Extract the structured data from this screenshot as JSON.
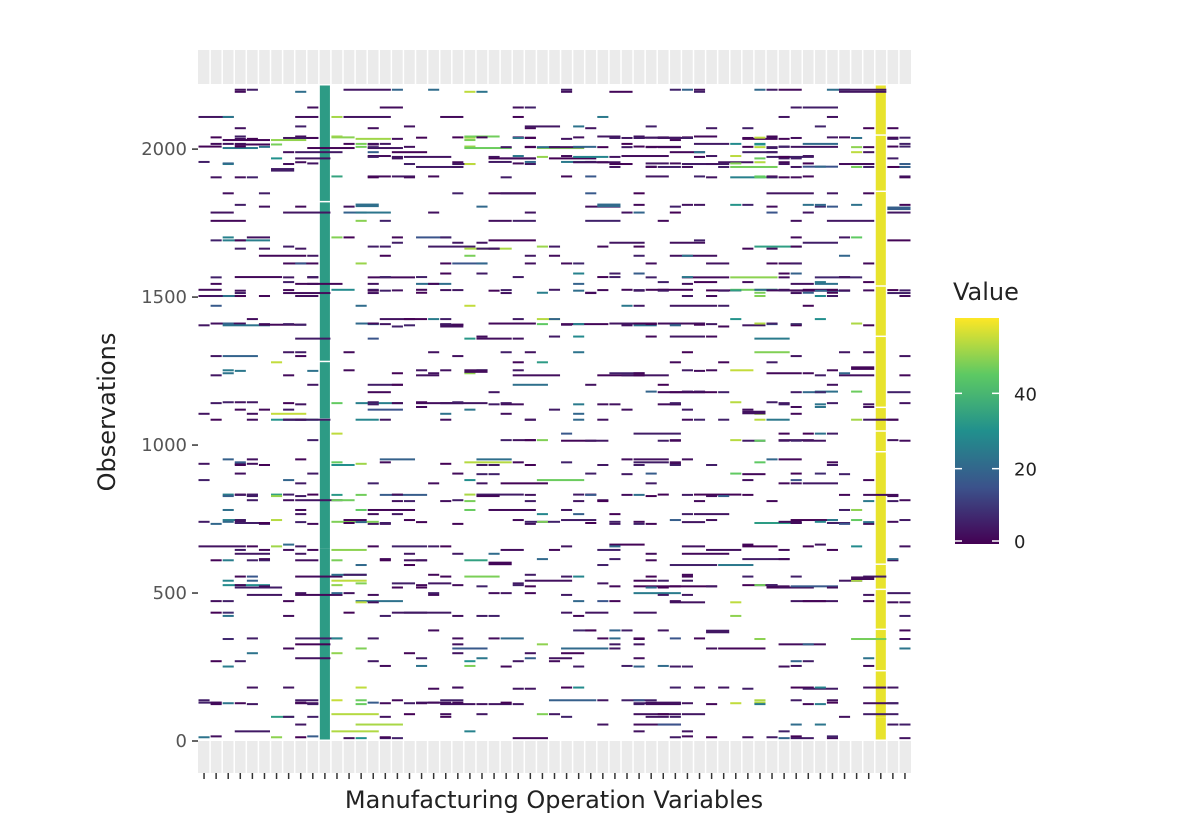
{
  "chart_data": {
    "type": "heatmap",
    "title": "",
    "xlabel": "Manufacturing Operation Variables",
    "ylabel": "Observations",
    "ylim": [
      0,
      2220
    ],
    "yticks": [
      0,
      500,
      1000,
      1500,
      2000
    ],
    "n_columns": 59,
    "legend": {
      "title": "Value",
      "placement": "right",
      "range": [
        0,
        60
      ],
      "ticks": [
        0,
        20,
        40
      ],
      "colors": [
        "#440154",
        "#3b528b",
        "#21908d",
        "#5dc963",
        "#fde725"
      ]
    },
    "grid": false,
    "background": "#ebebeb",
    "dense_columns": [
      {
        "column": 10,
        "value": 33,
        "gaps": [
          650,
          1090,
          1285,
          1825
        ]
      },
      {
        "column": 56,
        "value": 58,
        "gaps": [
          80,
          240,
          380,
          515,
          600,
          980,
          1050,
          1130,
          1370,
          1540,
          1860,
          2050
        ]
      }
    ],
    "cells": [
      {
        "column": 22,
        "row": 1250,
        "value": 2
      },
      {
        "column": 24,
        "row": 600,
        "value": 1
      },
      {
        "column": 45,
        "row": 1110,
        "value": 3
      },
      {
        "column": 54,
        "row": 550,
        "value": 2
      },
      {
        "column": 54,
        "row": 1260,
        "value": 1
      },
      {
        "column": 42,
        "row": 370,
        "value": 4
      },
      {
        "column": 6,
        "row": 1930,
        "value": 5
      },
      {
        "column": 57,
        "row": 1800,
        "value": 18
      },
      {
        "column": 13,
        "row": 1810,
        "value": 22
      },
      {
        "column": 33,
        "row": 1810,
        "value": 21
      }
    ]
  }
}
